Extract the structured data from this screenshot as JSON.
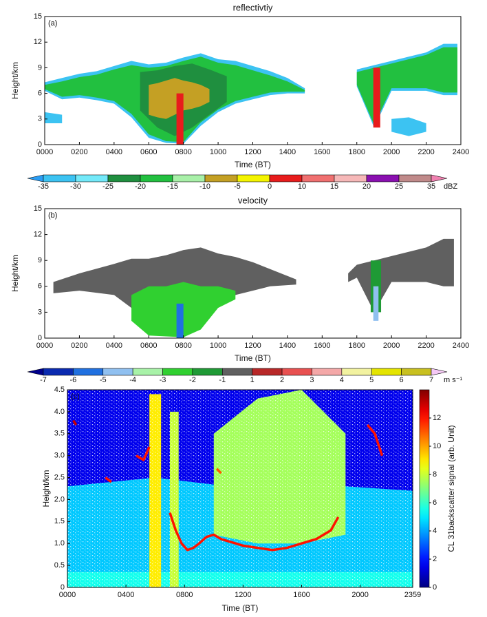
{
  "chart_data": [
    {
      "type": "heatmap",
      "title": "reflectivtiy",
      "label": "(a)",
      "xlabel": "Time (BT)",
      "ylabel": "Height/km",
      "xlim": [
        0,
        2400
      ],
      "xticks": [
        {
          "value": 0,
          "label": "0000"
        },
        {
          "value": 200,
          "label": "0200"
        },
        {
          "value": 400,
          "label": "0400"
        },
        {
          "value": 600,
          "label": "0600"
        },
        {
          "value": 800,
          "label": "0800"
        },
        {
          "value": 1000,
          "label": "1000"
        },
        {
          "value": 1200,
          "label": "1200"
        },
        {
          "value": 1400,
          "label": "1400"
        },
        {
          "value": 1600,
          "label": "1600"
        },
        {
          "value": 1800,
          "label": "1800"
        },
        {
          "value": 2000,
          "label": "2000"
        },
        {
          "value": 2200,
          "label": "2200"
        },
        {
          "value": 2400,
          "label": "2400"
        }
      ],
      "ylim": [
        0,
        15
      ],
      "yticks": [
        0,
        3,
        6,
        9,
        12,
        15
      ],
      "colorbar": {
        "ticks": [
          -35,
          -30,
          -25,
          -20,
          -15,
          -10,
          -5,
          0,
          10,
          15,
          20,
          25,
          35
        ],
        "unit": "dBZ",
        "colors": [
          "#2a9df4",
          "#3cc3f2",
          "#73e9f9",
          "#1f8f3f",
          "#22c040",
          "#a8f0a8",
          "#c4a024",
          "#f4f400",
          "#e81c1c",
          "#f07070",
          "#f6b8b8",
          "#8a10b0",
          "#c08a8a",
          "#f080b0"
        ]
      },
      "layers": [
        {
          "x": [
            0,
            100,
            200,
            300,
            400,
            500,
            600,
            700,
            800,
            900,
            1000,
            1100,
            1200,
            1300,
            1400,
            1500
          ],
          "top": [
            7.3,
            7.8,
            8.3,
            8.6,
            9.2,
            9.8,
            9.4,
            9.6,
            10.2,
            10.7,
            10,
            9.8,
            9.2,
            8.6,
            7.8,
            6.6
          ],
          "base": [
            6.3,
            5.3,
            5.5,
            5.2,
            4.8,
            3.2,
            0.8,
            0.2,
            0.1,
            2.2,
            3.8,
            4.8,
            5.3,
            5.8,
            6.0,
            6.0
          ],
          "value": -32
        },
        {
          "x": [
            0,
            100,
            200,
            300,
            400,
            500,
            600,
            700,
            800,
            900,
            1000,
            1100,
            1200,
            1300,
            1400,
            1500
          ],
          "top": [
            7,
            7.4,
            7.9,
            8.2,
            8.8,
            9.3,
            9,
            9.2,
            9.8,
            10.3,
            9.6,
            9.3,
            8.7,
            8.1,
            7.4,
            6.4
          ],
          "base": [
            6.5,
            5.6,
            5.8,
            5.5,
            5.1,
            3.6,
            1.2,
            0.4,
            0.3,
            2.6,
            4.1,
            5.1,
            5.6,
            6.1,
            6.2,
            6.2
          ],
          "value": -18
        },
        {
          "x": [
            550,
            650,
            750,
            850,
            950,
            1050
          ],
          "top": [
            8.5,
            8.7,
            9.2,
            9.5,
            8.8,
            8
          ],
          "base": [
            4,
            2,
            1,
            2,
            3.5,
            5
          ],
          "value": -22
        },
        {
          "x": [
            600,
            650,
            700,
            750,
            800,
            850,
            900,
            950
          ],
          "top": [
            7,
            7.2,
            7.5,
            7.8,
            7.5,
            7.3,
            7,
            6.5
          ],
          "base": [
            3.5,
            3.2,
            3,
            3.5,
            4,
            4.2,
            4.5,
            5
          ],
          "value": -7
        },
        {
          "x": [
            760,
            800
          ],
          "top": [
            6,
            6
          ],
          "base": [
            0,
            0
          ],
          "value": 5
        },
        {
          "x": [
            1800,
            1900,
            2000,
            2100,
            2200,
            2300,
            2380
          ],
          "top": [
            8.8,
            9.3,
            9.8,
            10.3,
            10.8,
            11.8,
            11.8
          ],
          "base": [
            6.8,
            2,
            6.3,
            6.3,
            6.3,
            5.8,
            5.8
          ],
          "value": -32
        },
        {
          "x": [
            1800,
            1900,
            2000,
            2100,
            2200,
            2300,
            2380
          ],
          "top": [
            8.5,
            9,
            9.5,
            10,
            10.5,
            11.4,
            11.4
          ],
          "base": [
            7,
            2.3,
            6.6,
            6.6,
            6.6,
            6.1,
            6.1
          ],
          "value": -18
        },
        {
          "x": [
            1895,
            1935
          ],
          "top": [
            9,
            9
          ],
          "base": [
            2,
            2
          ],
          "value": 5
        },
        {
          "x": [
            2000,
            2100,
            2200
          ],
          "top": [
            3,
            3.2,
            2.5
          ],
          "base": [
            1.5,
            1,
            1.5
          ],
          "value": -33
        },
        {
          "x": [
            0,
            100
          ],
          "top": [
            3.8,
            3.5
          ],
          "base": [
            2.5,
            2.5
          ],
          "value": -33
        }
      ]
    },
    {
      "type": "heatmap",
      "title": "velocity",
      "label": "(b)",
      "xlabel": "Time (BT)",
      "ylabel": "Height/km",
      "xlim": [
        0,
        2400
      ],
      "xticks": [
        {
          "value": 0,
          "label": "0000"
        },
        {
          "value": 200,
          "label": "0200"
        },
        {
          "value": 400,
          "label": "0400"
        },
        {
          "value": 600,
          "label": "0600"
        },
        {
          "value": 800,
          "label": "0800"
        },
        {
          "value": 1000,
          "label": "1000"
        },
        {
          "value": 1200,
          "label": "1200"
        },
        {
          "value": 1400,
          "label": "1400"
        },
        {
          "value": 1600,
          "label": "1600"
        },
        {
          "value": 1800,
          "label": "1800"
        },
        {
          "value": 2000,
          "label": "2000"
        },
        {
          "value": 2200,
          "label": "2200"
        },
        {
          "value": 2400,
          "label": "2400"
        }
      ],
      "ylim": [
        0,
        15
      ],
      "yticks": [
        0,
        3,
        6,
        9,
        12,
        15
      ],
      "colorbar": {
        "ticks": [
          -7,
          -6,
          -5,
          -4,
          -3,
          -2,
          -1,
          1,
          2,
          3,
          4,
          5,
          6,
          7
        ],
        "unit": "m s⁻¹",
        "colors": [
          "#00008b",
          "#0a2ab0",
          "#2070e0",
          "#90c0f0",
          "#a8f2a8",
          "#30d030",
          "#1f9a35",
          "#606060",
          "#b82828",
          "#e85050",
          "#f4a8a8",
          "#f2f2a0",
          "#e4e400",
          "#c8c020",
          "#f4c8f4"
        ]
      },
      "layers": [
        {
          "x": [
            50,
            200,
            400,
            500,
            600,
            700,
            800,
            900,
            1000,
            1100,
            1200,
            1300,
            1450
          ],
          "top": [
            6.5,
            7.5,
            8.6,
            9.2,
            9.2,
            9.6,
            10.2,
            10.5,
            9.8,
            9.4,
            8.8,
            8,
            6.8
          ],
          "base": [
            5.2,
            5.5,
            5,
            3.5,
            1,
            0.5,
            0.3,
            2.5,
            4,
            5,
            5.5,
            6,
            6.2
          ],
          "value": 0
        },
        {
          "x": [
            500,
            600,
            700,
            800,
            900,
            1000,
            1100
          ],
          "top": [
            5,
            6,
            6,
            6.5,
            6,
            6,
            5.5
          ],
          "base": [
            2,
            0.3,
            0.2,
            0.1,
            1,
            3.5,
            4.5
          ],
          "value": -2.5
        },
        {
          "x": [
            760,
            800
          ],
          "top": [
            4,
            4
          ],
          "base": [
            0,
            0
          ],
          "value": -6
        },
        {
          "x": [
            1750,
            1800,
            1900,
            2000,
            2100,
            2200,
            2300,
            2360
          ],
          "top": [
            7.5,
            8.5,
            9,
            9.5,
            10,
            10.5,
            11.5,
            11.5
          ],
          "base": [
            6.5,
            7,
            3,
            6.5,
            6.5,
            6.5,
            6,
            6
          ],
          "value": 0.5
        },
        {
          "x": [
            1880,
            1940
          ],
          "top": [
            9,
            9
          ],
          "base": [
            3,
            3
          ],
          "value": -2
        },
        {
          "x": [
            1895,
            1925
          ],
          "top": [
            6,
            6
          ],
          "base": [
            2,
            2
          ],
          "value": -5
        }
      ]
    },
    {
      "type": "heatmap",
      "label": "(c)",
      "xlabel": "Time (BT)",
      "ylabel": "Height/km",
      "xlim": [
        0,
        2359
      ],
      "xticks": [
        {
          "value": 0,
          "label": "0000"
        },
        {
          "value": 400,
          "label": "0400"
        },
        {
          "value": 800,
          "label": "0800"
        },
        {
          "value": 1200,
          "label": "1200"
        },
        {
          "value": 1600,
          "label": "1600"
        },
        {
          "value": 2000,
          "label": "2000"
        },
        2359
      ],
      "ylim": [
        0,
        4.5
      ],
      "yticks": [
        0,
        0.5,
        {
          "value": 1,
          "label": "1.0"
        },
        1.5,
        {
          "value": 2,
          "label": "2.0"
        },
        2.5,
        {
          "value": 3,
          "label": "3.0"
        },
        3.5,
        {
          "value": 4,
          "label": "4.0"
        },
        4.5
      ],
      "colorbar": {
        "lim": [
          0,
          14
        ],
        "ticks": [
          0,
          2,
          4,
          6,
          8,
          10,
          12
        ],
        "label": "CL 31backscatter signal (arb. Unit)"
      },
      "layers": [
        {
          "x": [
            0,
            2359
          ],
          "top": [
            4.5,
            4.5
          ],
          "base": [
            0,
            0
          ],
          "value": 1.5
        },
        {
          "x": [
            0,
            600,
            1100,
            1900,
            2359
          ],
          "top": [
            2.3,
            2.5,
            2.3,
            2.3,
            2.2
          ],
          "base": [
            0,
            0,
            0,
            0,
            0
          ],
          "value": 4.5
        },
        {
          "x": [
            1000,
            1300,
            1600,
            1900
          ],
          "top": [
            3.5,
            4.3,
            4.5,
            3.5
          ],
          "base": [
            1.2,
            1.0,
            1.0,
            1.2
          ],
          "value": 7.5
        },
        {
          "x": [
            0,
            2359
          ],
          "top": [
            0.35,
            0.35
          ],
          "base": [
            0,
            0
          ],
          "value": 5.5
        },
        {
          "x": [
            560,
            640
          ],
          "top": [
            4.4,
            4.4
          ],
          "base": [
            0,
            0
          ],
          "value": 9
        },
        {
          "x": [
            700,
            760
          ],
          "top": [
            4,
            4
          ],
          "base": [
            0,
            0
          ],
          "value": 8
        }
      ],
      "traces": [
        {
          "x": [
            700,
            740,
            780,
            820,
            860,
            900,
            950,
            1000,
            1050,
            1100,
            1150,
            1200,
            1300,
            1400,
            1500,
            1600,
            1700,
            1800,
            1850
          ],
          "y": [
            1.7,
            1.3,
            1.0,
            0.85,
            0.9,
            1.0,
            1.15,
            1.2,
            1.1,
            1.05,
            1.0,
            0.95,
            0.9,
            0.85,
            0.9,
            1.0,
            1.1,
            1.3,
            1.6
          ],
          "value": 12
        },
        {
          "x": [
            470,
            520,
            560
          ],
          "y": [
            3.0,
            2.9,
            3.2
          ],
          "value": 12
        },
        {
          "x": [
            2050,
            2100,
            2150
          ],
          "y": [
            3.7,
            3.5,
            3.0
          ],
          "value": 12
        },
        {
          "x": [
            40,
            60
          ],
          "y": [
            3.8,
            3.7
          ],
          "value": 13
        },
        {
          "x": [
            260,
            300
          ],
          "y": [
            2.5,
            2.4
          ],
          "value": 12
        },
        {
          "x": [
            1020,
            1050
          ],
          "y": [
            2.7,
            2.6
          ],
          "value": 11
        }
      ]
    }
  ]
}
